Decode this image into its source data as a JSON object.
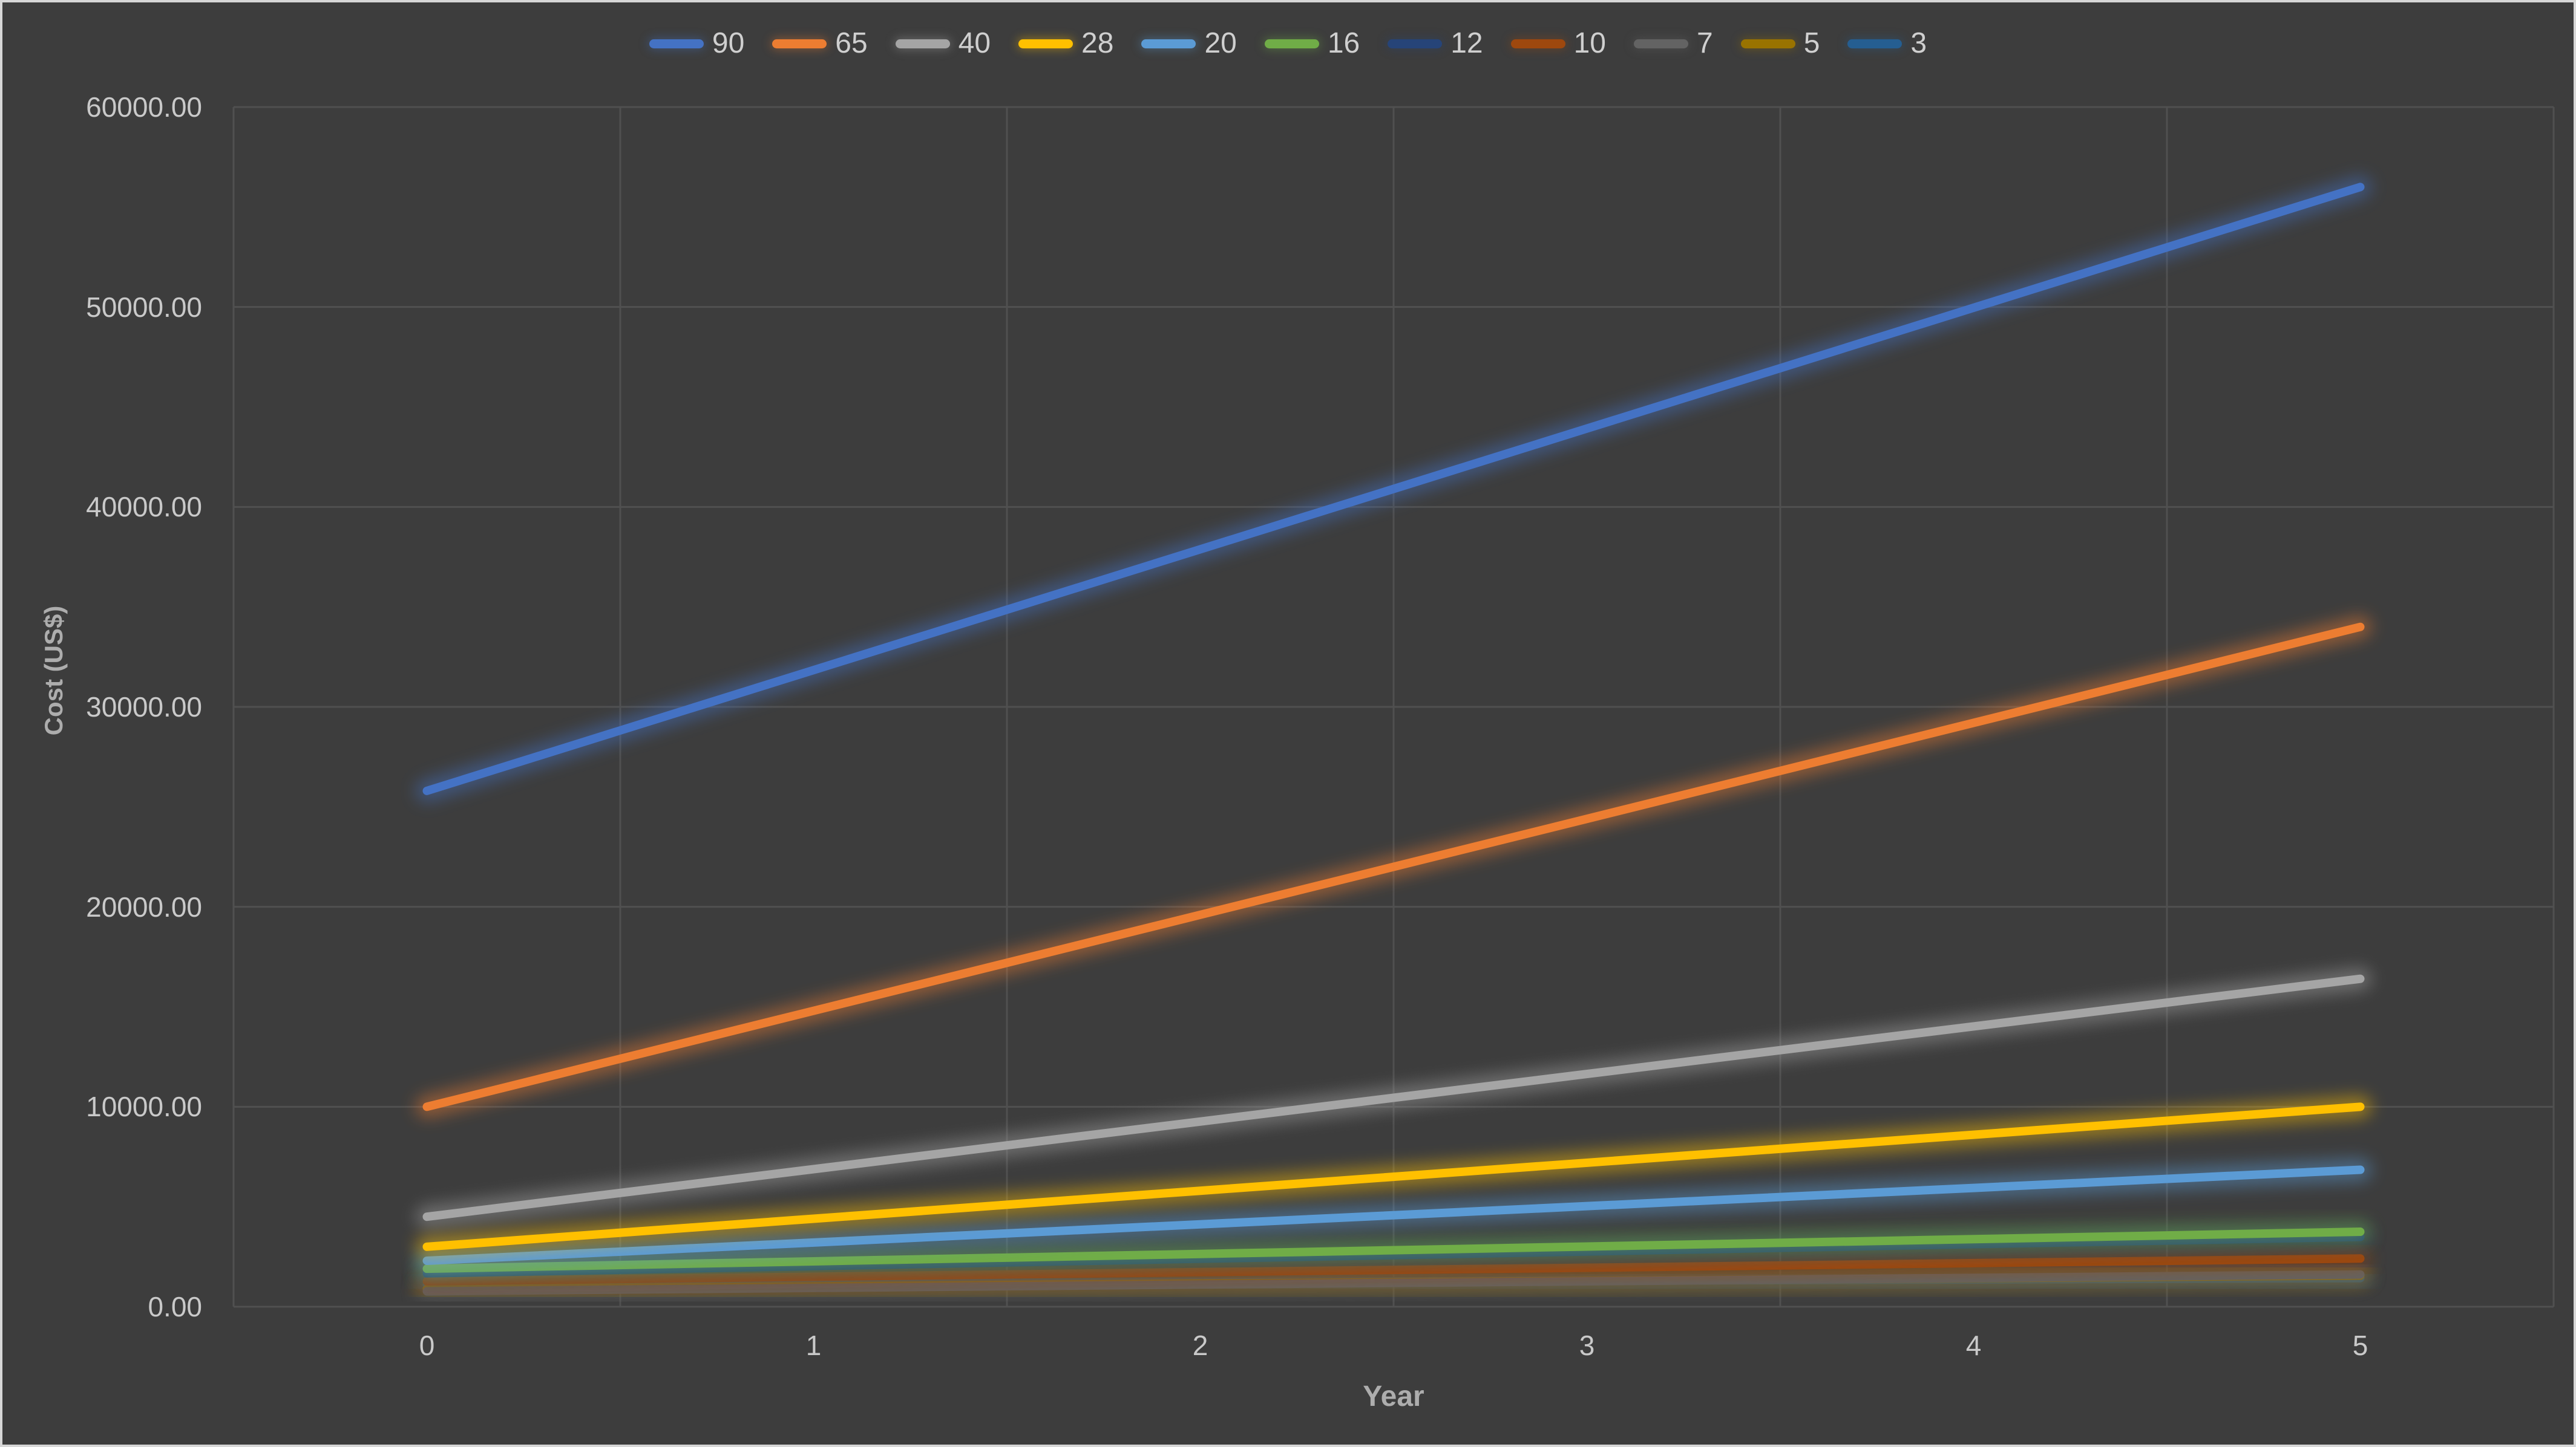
{
  "chart_data": {
    "type": "line",
    "title": "",
    "xlabel": "Year",
    "ylabel": "Cost (US$)",
    "x": [
      0,
      1,
      2,
      3,
      4,
      5
    ],
    "x_tick_labels": [
      "0",
      "1",
      "2",
      "3",
      "4",
      "5"
    ],
    "y_ticks": [
      0,
      10000,
      20000,
      30000,
      40000,
      50000,
      60000
    ],
    "y_tick_labels": [
      "0.00",
      "10000.00",
      "20000.00",
      "30000.00",
      "40000.00",
      "50000.00",
      "60000.00"
    ],
    "ylim": [
      0,
      60000
    ],
    "grid": true,
    "legend_position": "top",
    "series": [
      {
        "name": "90",
        "color": "#4472C4",
        "values": [
          25800,
          31840,
          37880,
          43920,
          49960,
          56000
        ]
      },
      {
        "name": "65",
        "color": "#ED7D31",
        "values": [
          10000,
          14800,
          19600,
          24400,
          29200,
          34000
        ]
      },
      {
        "name": "40",
        "color": "#A5A5A5",
        "values": [
          4500,
          6880,
          9260,
          11640,
          14020,
          16400
        ]
      },
      {
        "name": "28",
        "color": "#FFC000",
        "values": [
          3000,
          4400,
          5800,
          7200,
          8600,
          10000
        ]
      },
      {
        "name": "20",
        "color": "#5B9BD5",
        "values": [
          2300,
          3210,
          4120,
          5030,
          5940,
          6850
        ]
      },
      {
        "name": "16",
        "color": "#70AD47",
        "values": [
          1900,
          2270,
          2640,
          3010,
          3380,
          3750
        ]
      },
      {
        "name": "12",
        "color": "#264478",
        "values": [
          1670,
          2030,
          2400,
          2760,
          3130,
          3490
        ]
      },
      {
        "name": "10",
        "color": "#9E480E",
        "values": [
          1270,
          1500,
          1730,
          1950,
          2180,
          2410
        ]
      },
      {
        "name": "7",
        "color": "#636363",
        "values": [
          770,
          940,
          1110,
          1270,
          1440,
          1610
        ]
      },
      {
        "name": "5",
        "color": "#997300",
        "values": [
          890,
          1020,
          1160,
          1290,
          1430,
          1560
        ]
      },
      {
        "name": "3",
        "color": "#255E91",
        "values": [
          1100,
          1170,
          1230,
          1300,
          1360,
          1430
        ]
      }
    ]
  },
  "colors": {
    "background": "#3D3D3D",
    "gridline": "#505050",
    "tick_text": "#C9C9C9",
    "axis_title_text": "#ADADAD",
    "legend_text": "#CFCFCF",
    "frame_border": "#D7D7D7"
  }
}
